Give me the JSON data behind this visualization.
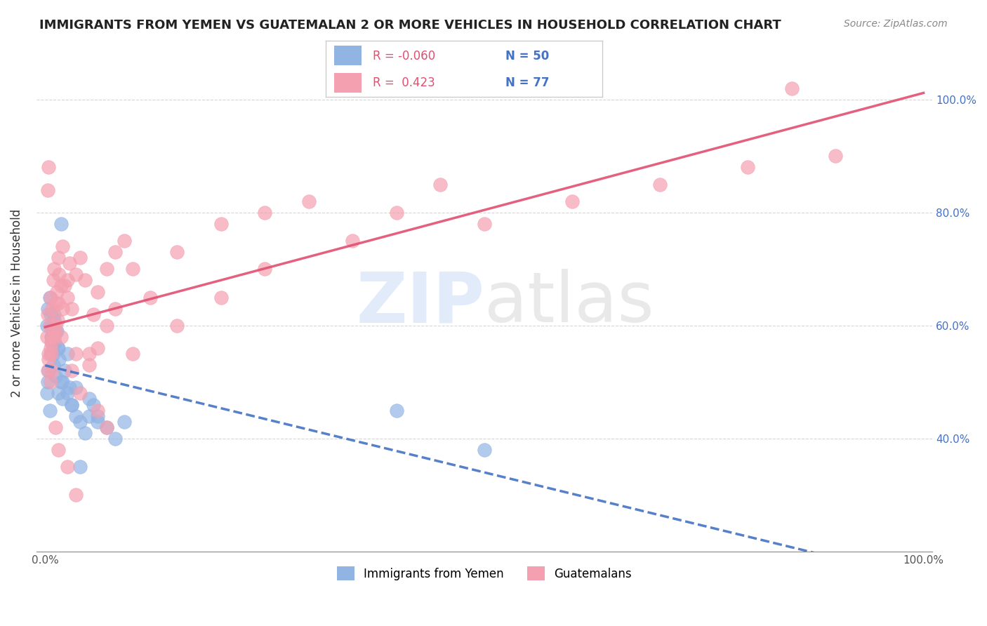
{
  "title": "IMMIGRANTS FROM YEMEN VS GUATEMALAN 2 OR MORE VEHICLES IN HOUSEHOLD CORRELATION CHART",
  "source": "Source: ZipAtlas.com",
  "ylabel": "2 or more Vehicles in Household",
  "legend_blue_r": "-0.060",
  "legend_blue_n": "50",
  "legend_pink_r": "0.423",
  "legend_pink_n": "77",
  "blue_color": "#92B4E3",
  "pink_color": "#F4A0B0",
  "blue_line_color": "#4472C4",
  "pink_line_color": "#E05070",
  "watermark_blue": "#B8CEF0",
  "watermark_gray": "#C0C0C0",
  "blue_scatter": {
    "x": [
      0.002,
      0.003,
      0.004,
      0.005,
      0.006,
      0.007,
      0.008,
      0.009,
      0.01,
      0.011,
      0.012,
      0.013,
      0.014,
      0.015,
      0.016,
      0.018,
      0.02,
      0.022,
      0.025,
      0.028,
      0.03,
      0.035,
      0.04,
      0.045,
      0.05,
      0.055,
      0.06,
      0.07,
      0.08,
      0.09,
      0.002,
      0.003,
      0.005,
      0.006,
      0.007,
      0.008,
      0.009,
      0.01,
      0.012,
      0.015,
      0.018,
      0.02,
      0.025,
      0.03,
      0.035,
      0.04,
      0.05,
      0.06,
      0.4,
      0.5
    ],
    "y": [
      0.48,
      0.5,
      0.52,
      0.45,
      0.55,
      0.6,
      0.58,
      0.53,
      0.62,
      0.57,
      0.51,
      0.59,
      0.56,
      0.48,
      0.54,
      0.5,
      0.47,
      0.52,
      0.55,
      0.49,
      0.46,
      0.44,
      0.43,
      0.41,
      0.47,
      0.46,
      0.44,
      0.42,
      0.4,
      0.43,
      0.6,
      0.63,
      0.65,
      0.62,
      0.58,
      0.57,
      0.55,
      0.61,
      0.59,
      0.56,
      0.78,
      0.5,
      0.48,
      0.46,
      0.49,
      0.35,
      0.44,
      0.43,
      0.45,
      0.38
    ]
  },
  "pink_scatter": {
    "x": [
      0.002,
      0.003,
      0.004,
      0.005,
      0.006,
      0.007,
      0.008,
      0.009,
      0.01,
      0.011,
      0.012,
      0.013,
      0.014,
      0.015,
      0.016,
      0.018,
      0.02,
      0.022,
      0.025,
      0.028,
      0.03,
      0.035,
      0.04,
      0.045,
      0.05,
      0.055,
      0.06,
      0.07,
      0.08,
      0.09,
      0.003,
      0.004,
      0.006,
      0.007,
      0.008,
      0.01,
      0.012,
      0.015,
      0.018,
      0.02,
      0.025,
      0.03,
      0.035,
      0.04,
      0.05,
      0.06,
      0.07,
      0.08,
      0.1,
      0.12,
      0.15,
      0.2,
      0.25,
      0.3,
      0.35,
      0.4,
      0.45,
      0.5,
      0.6,
      0.7,
      0.8,
      0.9,
      0.1,
      0.15,
      0.2,
      0.25,
      0.06,
      0.07,
      0.035,
      0.025,
      0.015,
      0.012,
      0.008,
      0.006,
      0.004,
      0.003,
      0.85
    ],
    "y": [
      0.58,
      0.62,
      0.55,
      0.6,
      0.65,
      0.57,
      0.63,
      0.68,
      0.7,
      0.59,
      0.64,
      0.66,
      0.61,
      0.72,
      0.69,
      0.58,
      0.74,
      0.67,
      0.65,
      0.71,
      0.63,
      0.69,
      0.72,
      0.68,
      0.55,
      0.62,
      0.66,
      0.7,
      0.73,
      0.75,
      0.84,
      0.88,
      0.5,
      0.55,
      0.52,
      0.58,
      0.6,
      0.64,
      0.67,
      0.63,
      0.68,
      0.52,
      0.55,
      0.48,
      0.53,
      0.56,
      0.6,
      0.63,
      0.7,
      0.65,
      0.73,
      0.78,
      0.8,
      0.82,
      0.75,
      0.8,
      0.85,
      0.78,
      0.82,
      0.85,
      0.88,
      0.9,
      0.55,
      0.6,
      0.65,
      0.7,
      0.45,
      0.42,
      0.3,
      0.35,
      0.38,
      0.42,
      0.58,
      0.56,
      0.54,
      0.52,
      1.02
    ]
  },
  "xlim": [
    -0.01,
    1.01
  ],
  "ylim": [
    0.2,
    1.08
  ],
  "yticks": [
    0.4,
    0.6,
    0.8,
    1.0
  ],
  "yticklabels_right": [
    "40.0%",
    "60.0%",
    "80.0%",
    "100.0%"
  ],
  "xticks": [
    0.0,
    0.2,
    0.4,
    0.6,
    0.8,
    1.0
  ],
  "xticklabels": [
    "0.0%",
    "",
    "",
    "",
    "",
    "100.0%"
  ]
}
